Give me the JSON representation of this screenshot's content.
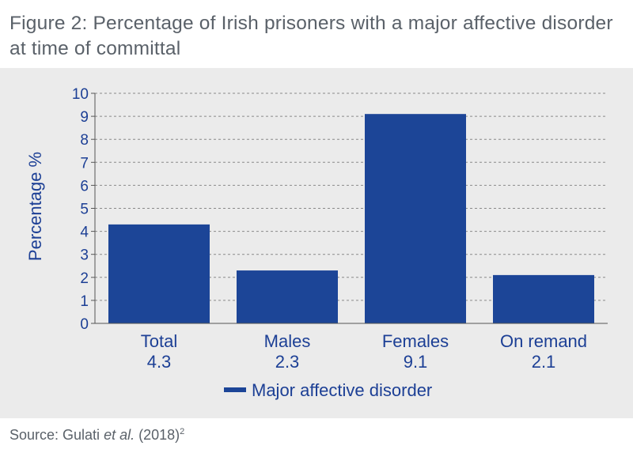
{
  "figure": {
    "title": "Figure 2: Percentage of Irish prisoners with a major affective disorder at time of committal"
  },
  "source": {
    "prefix": "Source: Gulati ",
    "italic": "et al.",
    "suffix": " (2018)",
    "footnote": "2"
  },
  "colors": {
    "bar": "#1c4597",
    "text": "#1c3f95",
    "panel": "#ebebeb"
  },
  "chart_data": {
    "type": "bar",
    "ylabel": "Percentage %",
    "ylim": [
      0,
      10
    ],
    "yticks": [
      "0",
      "1",
      "2",
      "3",
      "4",
      "5",
      "6",
      "7",
      "8",
      "9",
      "10"
    ],
    "grid": true,
    "categories": [
      "Total",
      "Males",
      "Females",
      "On remand"
    ],
    "value_labels": [
      "4.3",
      "2.3",
      "9.1",
      "2.1"
    ],
    "series": [
      {
        "name": "Major affective disorder",
        "values": [
          4.3,
          2.3,
          9.1,
          2.1
        ]
      }
    ],
    "legend": "bottom"
  }
}
